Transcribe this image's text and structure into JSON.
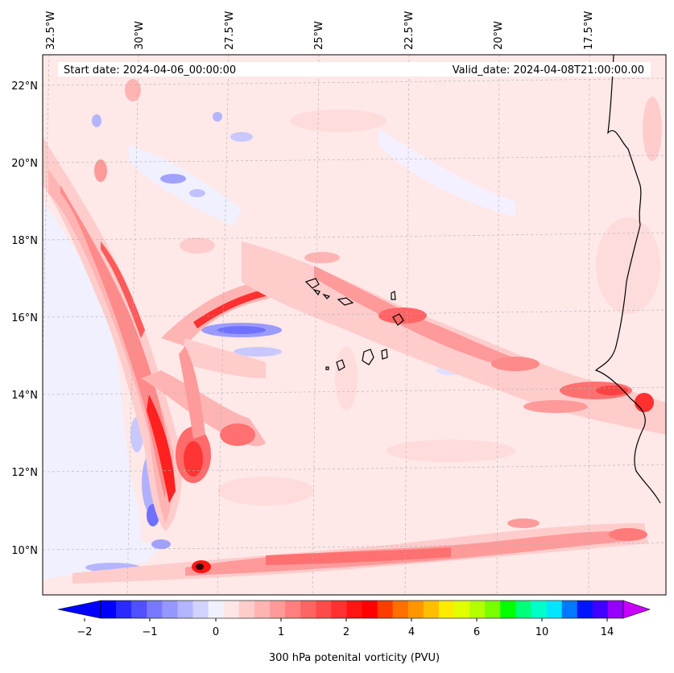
{
  "map": {
    "annotations": {
      "start": "Start date: 2024-04-06_00:00:00",
      "valid": "Valid_date: 2024-04-08T21:00:00.00"
    },
    "lon_labels": [
      "32.5°W",
      "30°W",
      "27.5°W",
      "25°W",
      "22.5°W",
      "20°W",
      "17.5°W"
    ],
    "lat_labels": [
      "22°N",
      "20°N",
      "18°N",
      "16°N",
      "14°N",
      "12°N",
      "10°N"
    ],
    "background_color": "#fee8e8"
  },
  "colorbar": {
    "label": "300 hPa potenital vorticity (PVU)",
    "tick_labels": [
      "−2",
      "−1",
      "0",
      "1",
      "2",
      "4",
      "6",
      "10",
      "14"
    ],
    "colors": [
      "#0000ff",
      "#2a2aff",
      "#5050ff",
      "#7878ff",
      "#9696ff",
      "#b4b4ff",
      "#d2d2ff",
      "#f0f0ff",
      "#ffe6e6",
      "#ffcccc",
      "#ffb4b4",
      "#ff9a9a",
      "#ff7f7f",
      "#ff6464",
      "#ff4a4a",
      "#ff3030",
      "#ff1414",
      "#ff0000",
      "#ff3c00",
      "#ff6e00",
      "#ff9600",
      "#ffbe00",
      "#ffeb00",
      "#e1ff00",
      "#b4ff00",
      "#78ff00",
      "#00ff00",
      "#00ff78",
      "#00ffc8",
      "#00e6ff",
      "#0078ff",
      "#0014ff",
      "#4000ff",
      "#9600ff"
    ],
    "under_color": "#0000ff",
    "over_color": "#c800ff"
  }
}
